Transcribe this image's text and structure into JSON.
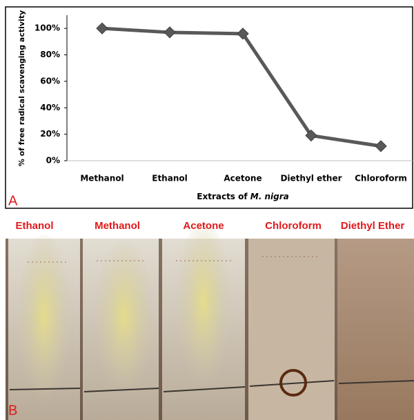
{
  "chart_data": {
    "type": "line",
    "y_label": "% of free radical scavenging activity",
    "x_label": "Extracts of",
    "x_label_italic": "M. nigra",
    "categories": [
      "Methanol",
      "Ethanol",
      "Acetone",
      "Diethyl ether",
      "Chloroform"
    ],
    "values": [
      100,
      97,
      96,
      19,
      11
    ],
    "color": "#595959",
    "ylim": [
      0,
      110
    ],
    "yticks": [
      {
        "value": 0,
        "label": "0%"
      },
      {
        "value": 20,
        "label": "20%"
      },
      {
        "value": 40,
        "label": "40%"
      },
      {
        "value": 60,
        "label": "60%"
      },
      {
        "value": 80,
        "label": "80%"
      },
      {
        "value": 100,
        "label": "100%"
      }
    ],
    "grid": false
  },
  "panel_a_label": "A",
  "panel_b": {
    "label": "B",
    "strip_labels": [
      "Ethanol",
      "Methanol",
      "Acetone",
      "Chloroform",
      "Diethyl Ether"
    ]
  }
}
